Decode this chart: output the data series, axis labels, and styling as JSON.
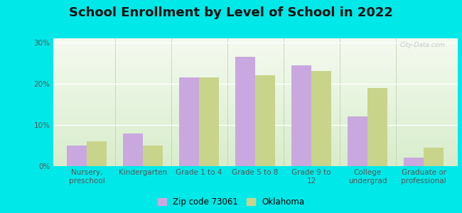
{
  "title": "School Enrollment by Level of School in 2022",
  "categories": [
    "Nursery,\npreschool",
    "Kindergarten",
    "Grade 1 to 4",
    "Grade 5 to 8",
    "Grade 9 to\n12",
    "College\nundergrad",
    "Graduate or\nprofessional"
  ],
  "zip_values": [
    5.0,
    8.0,
    21.5,
    26.5,
    24.5,
    12.0,
    2.0
  ],
  "ok_values": [
    6.0,
    5.0,
    21.5,
    22.0,
    23.0,
    19.0,
    4.5
  ],
  "zip_color": "#c9a8e0",
  "ok_color": "#c8d48a",
  "background_outer": "#00e8e8",
  "gradient_top": "#f5faf0",
  "gradient_bottom": "#d8edcc",
  "yticks": [
    0,
    10,
    20,
    30
  ],
  "ylim": [
    0,
    31
  ],
  "legend_zip": "Zip code 73061",
  "legend_ok": "Oklahoma",
  "bar_width": 0.35,
  "title_fontsize": 13,
  "tick_fontsize": 7.5,
  "legend_fontsize": 8.5,
  "watermark": "City-Data.com"
}
